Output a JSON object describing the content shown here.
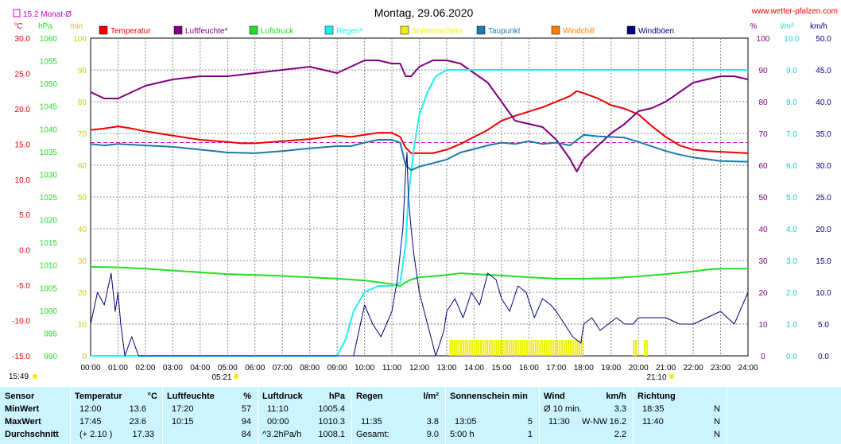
{
  "header": {
    "title": "Montag, 29.06.2020",
    "url": "www.wetter-pfalzen.com",
    "monat_label": "15.2 Monat-Ø"
  },
  "units": {
    "temp": "°C",
    "hpa": "hPa",
    "min": "min",
    "pct": "%",
    "lm2": "l/m²",
    "kmh": "km/h"
  },
  "legend": [
    {
      "label": "Temperatur",
      "color": "#ee0000"
    },
    {
      "label": "Luftfeuchte*",
      "color": "#800080"
    },
    {
      "label": "Luftdruck",
      "color": "#22dd22"
    },
    {
      "label": "Regen*",
      "color": "#22eeee"
    },
    {
      "label": "Sonnenschein",
      "color": "#eeee00"
    },
    {
      "label": "Taupunkt",
      "color": "#1a7aaa"
    },
    {
      "label": "Windchill",
      "color": "#ff8000"
    },
    {
      "label": "Windböen",
      "color": "#000080"
    }
  ],
  "axes": {
    "temp_ticks": [
      "30.0",
      "25.0",
      "20.0",
      "15.0",
      "10.0",
      "5.0",
      "0.0",
      "-5.0",
      "-10.0",
      "-15.0"
    ],
    "hpa_ticks": [
      "1060",
      "1055",
      "1050",
      "1045",
      "1040",
      "1035",
      "1030",
      "1025",
      "1020",
      "1015",
      "1010",
      "1005",
      "1000",
      "995",
      "990"
    ],
    "min_ticks": [
      "100",
      "90",
      "80",
      "70",
      "60",
      "50",
      "40",
      "30",
      "20",
      "10",
      "0"
    ],
    "pct_ticks": [
      "100",
      "90",
      "80",
      "70",
      "60",
      "50",
      "40",
      "30",
      "20",
      "10",
      "0"
    ],
    "rain_ticks": [
      "10.0",
      "9.0",
      "8.0",
      "7.0",
      "6.0",
      "5.0",
      "4.0",
      "3.0",
      "2.0",
      "1.0",
      "0.0"
    ],
    "kmh_ticks": [
      "50.0",
      "45.0",
      "40.0",
      "35.0",
      "30.0",
      "25.0",
      "20.0",
      "15.0",
      "10.0",
      "5.0",
      "0.0"
    ],
    "x_ticks": [
      "00:00",
      "01:00",
      "02:00",
      "03:00",
      "04:00",
      "05:00",
      "06:00",
      "07:00",
      "08:00",
      "09:00",
      "10:00",
      "11:00",
      "12:00",
      "13:00",
      "14:00",
      "15:00",
      "16:00",
      "17:00",
      "18:00",
      "19:00",
      "20:00",
      "21:00",
      "22:00",
      "23:00",
      "24:00"
    ],
    "sunrise_label": "05:21",
    "sunset_label": "21:10",
    "moon_label": "15:49"
  },
  "chart_data": {
    "type": "line",
    "x_unit": "hours",
    "x_range": [
      0,
      24
    ],
    "monthly_avg_temp": 15.2,
    "series": [
      {
        "name": "Temperatur",
        "axis": "°C",
        "color": "#ee0000",
        "x": [
          0,
          0.5,
          1,
          1.5,
          2,
          3,
          4,
          5,
          5.5,
          6,
          7,
          8,
          9,
          9.5,
          10,
          10.5,
          11,
          11.3,
          11.5,
          11.7,
          12,
          12.5,
          13,
          13.5,
          14,
          14.5,
          15,
          15.5,
          16,
          16.5,
          17,
          17.5,
          17.75,
          18,
          18.5,
          19,
          19.5,
          20,
          20.5,
          21,
          21.5,
          22,
          22.5,
          23,
          24
        ],
        "y": [
          17.0,
          17.2,
          17.5,
          17.2,
          16.8,
          16.2,
          15.6,
          15.3,
          15.1,
          15.1,
          15.4,
          15.7,
          16.2,
          16.0,
          16.3,
          16.6,
          16.6,
          16.0,
          14.5,
          13.7,
          13.7,
          13.7,
          14.2,
          15.0,
          16.0,
          17.0,
          18.3,
          19.0,
          19.6,
          20.2,
          21.0,
          21.8,
          22.5,
          22.2,
          21.5,
          20.5,
          20.0,
          19.2,
          17.5,
          16.0,
          14.8,
          14.2,
          14.0,
          13.9,
          13.7
        ]
      },
      {
        "name": "Luftfeuchte*",
        "axis": "%",
        "color": "#800080",
        "x": [
          0,
          0.5,
          1,
          1.5,
          2,
          3,
          4,
          5,
          6,
          7,
          8,
          8.5,
          9,
          9.5,
          10,
          10.5,
          11,
          11.3,
          11.5,
          11.7,
          12,
          12.5,
          13,
          13.5,
          14,
          14.5,
          15,
          15.5,
          16,
          16.5,
          17,
          17.5,
          17.75,
          18,
          18.5,
          19,
          19.5,
          20,
          20.5,
          21,
          21.5,
          22,
          22.5,
          23,
          23.5,
          24
        ],
        "y": [
          83,
          81,
          81,
          83,
          85,
          87,
          88,
          88,
          89,
          90,
          91,
          90,
          89,
          91,
          93,
          93,
          92,
          92,
          88,
          88,
          91,
          93,
          93,
          92,
          89,
          86,
          80,
          74,
          73,
          72,
          68,
          62,
          58,
          62,
          66,
          70,
          73,
          77,
          78,
          80,
          83,
          86,
          87,
          88,
          88,
          87
        ]
      },
      {
        "name": "Luftdruck",
        "axis": "hPa",
        "color": "#22dd22",
        "x": [
          0,
          1,
          2,
          3,
          4,
          5,
          6,
          7,
          8,
          9,
          10,
          10.5,
          11,
          11.3,
          11.5,
          11.7,
          12,
          13,
          13.5,
          14,
          15,
          16,
          17,
          18,
          19,
          20,
          21,
          22,
          22.5,
          23,
          24
        ],
        "y": [
          1009.6,
          1009.5,
          1009.2,
          1008.8,
          1008.4,
          1008.0,
          1007.8,
          1007.6,
          1007.3,
          1007.0,
          1006.6,
          1006.2,
          1005.8,
          1005.4,
          1006.2,
          1006.8,
          1007.3,
          1007.8,
          1008.2,
          1008.0,
          1007.7,
          1007.3,
          1007.0,
          1007.0,
          1007.1,
          1007.5,
          1008.0,
          1008.6,
          1009.0,
          1009.2,
          1009.2
        ]
      },
      {
        "name": "Regen*",
        "axis": "l/m²",
        "color": "#22eeee",
        "x": [
          0,
          9.0,
          9.3,
          9.6,
          10,
          10.5,
          11,
          11.3,
          11.5,
          11.6,
          11.8,
          12,
          12.3,
          12.6,
          13,
          13.5,
          14,
          24
        ],
        "y": [
          0,
          0,
          0.5,
          1.4,
          2.0,
          2.2,
          2.2,
          2.3,
          3.5,
          5.0,
          6.5,
          7.6,
          8.3,
          8.8,
          9.0,
          9.0,
          9.0,
          9.0
        ]
      },
      {
        "name": "Taupunkt",
        "axis": "°C",
        "color": "#1a7aaa",
        "x": [
          0,
          0.5,
          1,
          2,
          3,
          4,
          5,
          6,
          7,
          8,
          9,
          9.5,
          10,
          10.5,
          11,
          11.3,
          11.5,
          11.7,
          12,
          12.5,
          13,
          13.5,
          14,
          14.5,
          15,
          15.5,
          16,
          16.5,
          17,
          17.5,
          18,
          18.5,
          19,
          19.5,
          20,
          21,
          21.5,
          22,
          23,
          24
        ],
        "y": [
          15.0,
          14.8,
          15.0,
          14.8,
          14.6,
          14.2,
          13.8,
          13.7,
          14.0,
          14.4,
          14.7,
          14.7,
          15.2,
          15.6,
          15.6,
          15.2,
          12.0,
          11.3,
          11.8,
          12.3,
          12.8,
          13.8,
          14.3,
          14.8,
          15.2,
          15.0,
          15.4,
          15.0,
          15.2,
          14.8,
          16.3,
          16.1,
          16.0,
          15.9,
          15.3,
          14.0,
          13.5,
          13.1,
          12.6,
          12.5
        ]
      },
      {
        "name": "Windböen",
        "axis": "km/h",
        "color": "#000080",
        "x": [
          0,
          0.25,
          0.5,
          0.75,
          0.9,
          1.0,
          1.1,
          1.25,
          1.5,
          1.75,
          2,
          9.0,
          9.3,
          9.6,
          10,
          10.3,
          10.6,
          11,
          11.2,
          11.4,
          11.5,
          11.55,
          11.6,
          11.7,
          11.8,
          12,
          12.3,
          12.6,
          12.9,
          13,
          13.3,
          13.6,
          13.9,
          14.2,
          14.5,
          14.8,
          15,
          15.3,
          15.6,
          15.9,
          16.2,
          16.5,
          16.8,
          17,
          17.3,
          17.6,
          17.9,
          18,
          18.3,
          18.6,
          18.9,
          19.2,
          19.5,
          19.8,
          20,
          20.5,
          21,
          21.5,
          22,
          22.5,
          23,
          23.5,
          24
        ],
        "y": [
          5,
          10,
          8,
          13,
          7,
          10,
          5,
          0,
          3,
          0,
          0,
          0,
          0,
          0,
          8,
          5,
          3,
          7,
          12,
          20,
          29,
          32,
          25,
          20,
          16,
          10,
          5,
          0,
          4,
          7,
          9,
          6,
          10,
          8,
          13,
          12,
          9,
          7,
          11,
          10,
          6,
          9,
          8,
          7,
          5,
          3,
          2,
          5,
          6,
          4,
          5,
          6,
          5,
          5,
          6,
          6,
          6,
          5,
          5,
          6,
          7,
          5,
          10
        ]
      }
    ],
    "sunshine_bars_hours": [
      [
        13.1,
        17.9
      ],
      [
        19.8,
        19.95
      ],
      [
        20.2,
        20.3
      ]
    ],
    "ylim": {
      "temp": [
        -15,
        30
      ],
      "hpa": [
        990,
        1060
      ],
      "min": [
        0,
        100
      ],
      "pct": [
        0,
        100
      ],
      "rain": [
        0,
        10
      ],
      "kmh": [
        0,
        50
      ]
    }
  },
  "stats": {
    "row_labels": [
      "Sensor",
      "MinWert",
      "MaxWert",
      "Durchschnitt"
    ],
    "temp": {
      "head1": "Temperatur",
      "head2": "°C",
      "min_t": "12:00",
      "min_v": "13.6",
      "max_t": "17:45",
      "max_v": "23.6",
      "avg_t": "(+ 2.10 )",
      "avg_v": "17.33"
    },
    "hum": {
      "head1": "Luftfeuchte",
      "head2": "%",
      "min_t": "17:20",
      "min_v": "57",
      "max_t": "10:15",
      "max_v": "94",
      "avg_t": "",
      "avg_v": "84"
    },
    "press": {
      "head1": "Luftdruck",
      "head2": "hPa",
      "min_t": "11:10",
      "min_v": "1005.4",
      "max_t": "00:00",
      "max_v": "1010.3",
      "avg_t": "^3.2hPa/h",
      "avg_v": "1008.1"
    },
    "rain": {
      "head1": "Regen",
      "head2": "l/m²",
      "min_t": "",
      "min_v": "",
      "max_t": "11:35",
      "max_v": "3.8",
      "avg_t": "Gesamt:",
      "avg_v": "9.0"
    },
    "sun": {
      "head1": "Sonnenschein min",
      "min_t": "",
      "min_v": "",
      "max_t": "13:05",
      "max_v": "5",
      "avg_t": "5:00 h",
      "avg_v": "1"
    },
    "wind": {
      "head1": "Wind",
      "head2": "km/h",
      "min_t": "Ø 10 min.",
      "min_v": "3.3",
      "max_t": "11:30",
      "max_dir": "W-NW",
      "max_v": "16.2",
      "avg_v": "2.2"
    },
    "dir": {
      "head1": "Richtung",
      "min_t": "18:35",
      "min_v": "N",
      "max_t": "11:40",
      "max_v": "N",
      "avg_v": "N"
    }
  }
}
